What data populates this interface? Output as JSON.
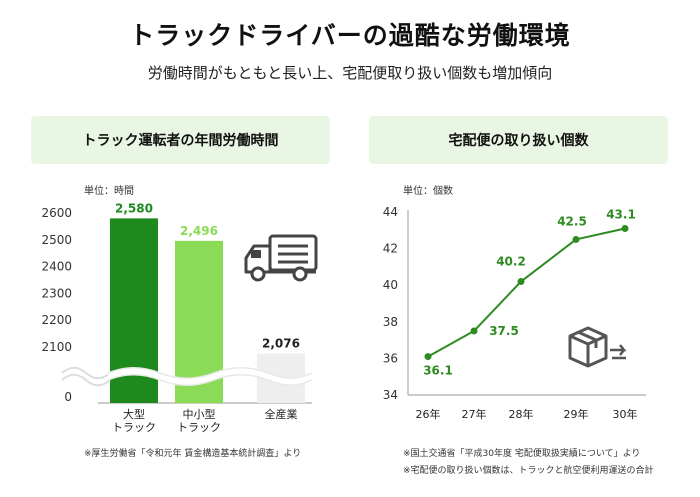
{
  "header": {
    "title": "トラックドライバーの過酷な労働環境",
    "subtitle": "労働時間がもともと長い上、宅配便取り扱い個数も増加傾向"
  },
  "colors": {
    "dark_green": "#1e8a1e",
    "light_green": "#8adc56",
    "gray": "#eeeeee",
    "line_green": "#2e8b22",
    "panel_bg": "#eaf6e4"
  },
  "chart_data": [
    {
      "type": "bar",
      "title": "トラック運転者の年間労働時間",
      "unit_label": "単位：時間",
      "categories": [
        [
          "大型",
          "トラック"
        ],
        [
          "中小型",
          "トラック"
        ],
        [
          "全産業"
        ]
      ],
      "values": [
        2580,
        2496,
        2076
      ],
      "value_labels": [
        "2,580",
        "2,496",
        "2,076"
      ],
      "yticks": [
        "2600",
        "2500",
        "2400",
        "2300",
        "2200",
        "2100",
        "0"
      ],
      "ylim": [
        2050,
        2600
      ],
      "axis_break": true,
      "icon": "truck-icon",
      "grid": false
    },
    {
      "type": "line",
      "title": "宅配便の取り扱い個数",
      "unit_label": "単位：個数",
      "x": [
        "26年",
        "27年",
        "28年",
        "29年",
        "30年"
      ],
      "values": [
        36.1,
        37.5,
        40.2,
        42.5,
        43.1
      ],
      "value_labels": [
        "36.1",
        "37.5",
        "40.2",
        "42.5",
        "43.1"
      ],
      "yticks": [
        "44",
        "42",
        "40",
        "38",
        "36",
        "34"
      ],
      "ylim": [
        34,
        44
      ],
      "icon": "package-delivery-icon",
      "grid": false
    }
  ],
  "notes": {
    "left": "※厚生労働省「令和元年 賃金構造基本統計調査」より",
    "right_1": "※国土交通省「平成30年度 宅配便取扱実績について」より",
    "right_2": "※宅配便の取り扱い個数は、トラックと航空便利用運送の合計"
  }
}
